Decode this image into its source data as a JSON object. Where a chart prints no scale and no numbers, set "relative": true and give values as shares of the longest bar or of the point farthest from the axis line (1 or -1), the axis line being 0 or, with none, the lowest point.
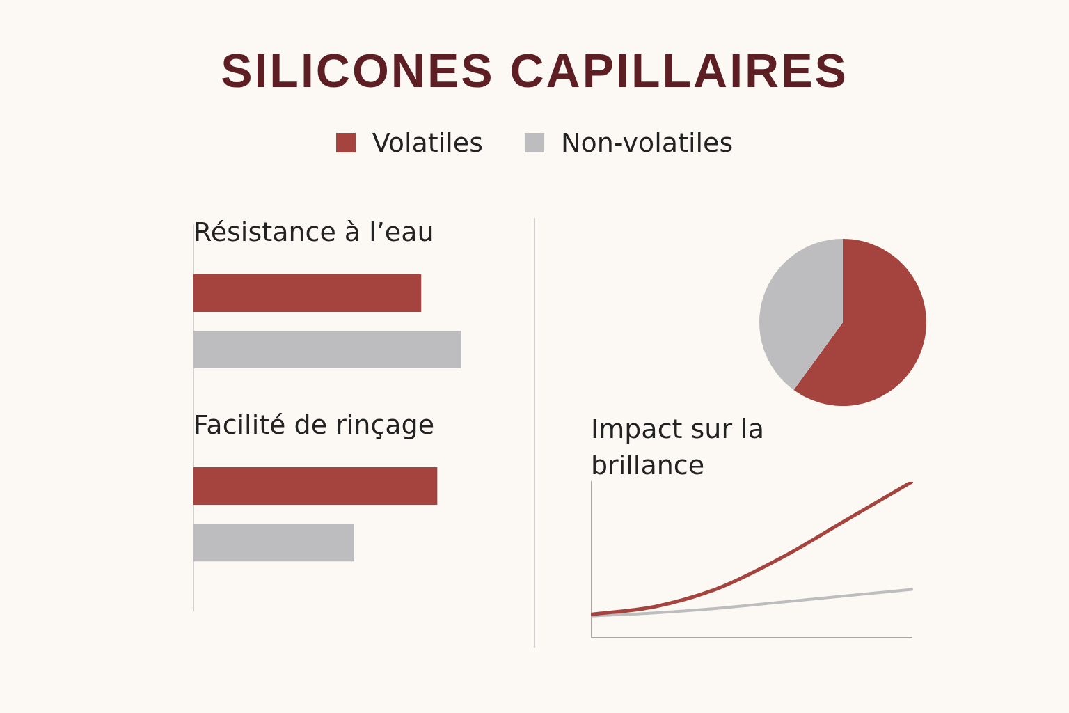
{
  "chart_data": [
    {
      "type": "other",
      "title": "SILICONES CAPILLAIRES",
      "legend": "top",
      "series": [
        {
          "name": "Volatiles",
          "color": "#a5443f"
        },
        {
          "name": "Non-volatiles",
          "color": "#bdbdbf"
        }
      ]
    },
    {
      "type": "bar",
      "orientation": "horizontal",
      "relative": true,
      "categories": [
        "Résistance à l’eau",
        "Facilité de rinçage"
      ],
      "series": [
        {
          "color": "#a5443f",
          "values": [
            0.85,
            0.91
          ]
        },
        {
          "color": "#bdbdbf",
          "values": [
            1,
            0.6
          ]
        }
      ]
    },
    {
      "type": "pie",
      "categories": [
        null,
        null
      ],
      "values": [
        60,
        40
      ],
      "colors": [
        "#a5443f",
        "#bdbdbf"
      ]
    },
    {
      "type": "line",
      "title": "Impact sur la brillance",
      "relative": true,
      "categories": [
        null,
        null,
        null,
        null,
        null,
        null
      ],
      "series": [
        {
          "color": "#a5443f",
          "values": [
            0.15,
            0.2,
            0.32,
            0.52,
            0.76,
            1
          ]
        },
        {
          "color": "#bdbdbf",
          "values": [
            0.14,
            0.16,
            0.19,
            0.23,
            0.27,
            0.31
          ]
        }
      ]
    }
  ]
}
